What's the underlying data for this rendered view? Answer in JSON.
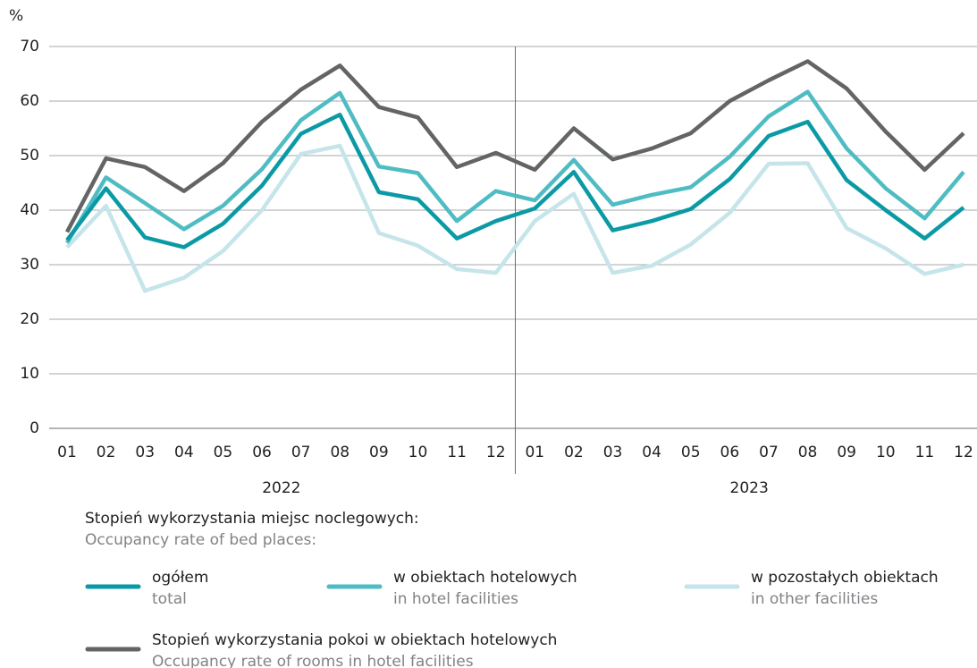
{
  "chart_data": {
    "type": "line",
    "y_unit": "%",
    "categories": [
      "01",
      "02",
      "03",
      "04",
      "05",
      "06",
      "07",
      "08",
      "09",
      "10",
      "11",
      "12",
      "01",
      "02",
      "03",
      "04",
      "05",
      "06",
      "07",
      "08",
      "09",
      "10",
      "11",
      "12"
    ],
    "groups": [
      "2022",
      "2023"
    ],
    "ylim": [
      0,
      70
    ],
    "yticks": [
      0,
      10,
      20,
      30,
      40,
      50,
      60,
      70
    ],
    "grid": true,
    "legend_title": "Stopień wykorzystania miejsc noclegowych:",
    "legend_title_en": "Occupancy rate of bed places:",
    "series": [
      {
        "name": "ogółem",
        "name_en": "total",
        "color": "#0b9aa5",
        "values": [
          34.5,
          44,
          35,
          33.2,
          37.5,
          44.5,
          54,
          57.5,
          43.3,
          42,
          34.8,
          38,
          40.3,
          47,
          36.3,
          38,
          40.2,
          45.7,
          53.6,
          56.2,
          45.5,
          40,
          34.8,
          40.5
        ]
      },
      {
        "name": "w obiektach hotelowych",
        "name_en": "in hotel facilities",
        "color": "#4fbcc3",
        "values": [
          34,
          46,
          41.3,
          36.5,
          40.8,
          47.5,
          56.5,
          61.5,
          48,
          46.8,
          38,
          43.5,
          41.8,
          49.2,
          41,
          42.8,
          44.2,
          49.8,
          57.2,
          61.7,
          51.3,
          44,
          38.5,
          47
        ]
      },
      {
        "name": "w pozostałych obiektach",
        "name_en": "in other facilities",
        "color": "#c5e5ea",
        "values": [
          33.2,
          40.8,
          25.2,
          27.6,
          32.5,
          40,
          50.3,
          51.8,
          35.8,
          33.5,
          29.2,
          28.5,
          38,
          43,
          28.5,
          29.8,
          33.7,
          39.5,
          48.5,
          48.6,
          36.7,
          33,
          28.3,
          30
        ]
      },
      {
        "name": "Stopień wykorzystania pokoi w obiektach hotelowych",
        "name_en": "Occupancy rate of rooms in hotel facilities",
        "color": "#636466",
        "values": [
          36,
          49.5,
          47.9,
          43.5,
          48.6,
          56.2,
          62.1,
          66.5,
          58.9,
          57,
          47.9,
          50.5,
          47.4,
          55,
          49.3,
          51.3,
          54.1,
          60,
          63.8,
          67.3,
          62.3,
          54.4,
          47.4,
          54.1
        ]
      }
    ]
  }
}
